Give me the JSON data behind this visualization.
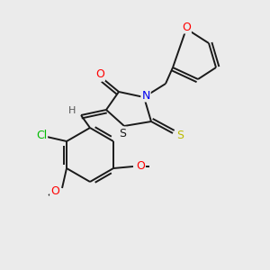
{
  "bg_color": "#ebebeb",
  "bond_color": "#1a1a1a",
  "atom_colors": {
    "O": "#ff0000",
    "N": "#0000ee",
    "S_thioxo": "#bbbb00",
    "S_ring": "#1a1a1a",
    "Cl": "#00bb00",
    "H": "#555555",
    "C": "#1a1a1a"
  },
  "figsize": [
    3.0,
    3.0
  ],
  "dpi": 100
}
